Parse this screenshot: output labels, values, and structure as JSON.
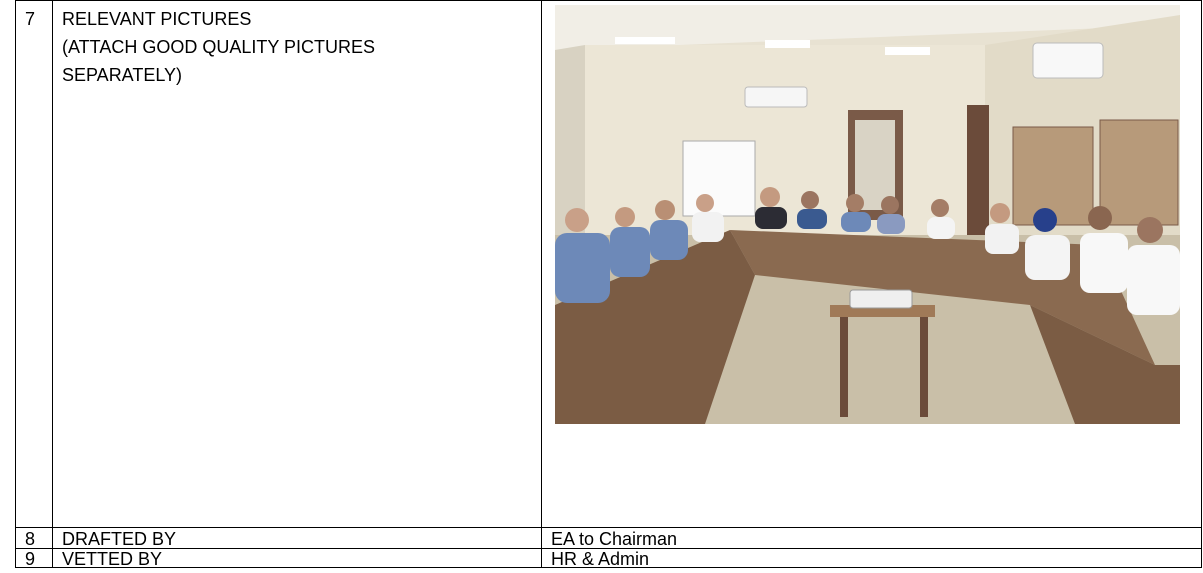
{
  "table": {
    "rows": [
      {
        "number": "7",
        "label_lines": [
          "RELEVANT PICTURES",
          "(ATTACH GOOD QUALITY PICTURES",
          "SEPARATELY)"
        ]
      },
      {
        "number": "8",
        "label": "DRAFTED BY",
        "value": "EA to Chairman"
      },
      {
        "number": "9",
        "label": "VETTED BY",
        "value": "HR & Admin"
      }
    ]
  }
}
